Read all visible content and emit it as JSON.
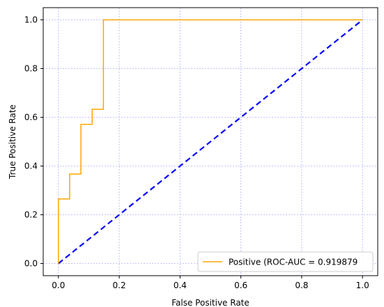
{
  "chart_data": {
    "type": "line",
    "xlabel": "False Positive Rate",
    "ylabel": "True Positive Rate",
    "xlim": [
      -0.05,
      1.05
    ],
    "ylim": [
      -0.05,
      1.05
    ],
    "xticks": [
      0.0,
      0.2,
      0.4,
      0.6,
      0.8,
      1.0
    ],
    "yticks": [
      0.0,
      0.2,
      0.4,
      0.6,
      0.8,
      1.0
    ],
    "xtick_labels": [
      "0.0",
      "0.2",
      "0.4",
      "0.6",
      "0.8",
      "1.0"
    ],
    "ytick_labels": [
      "0.0",
      "0.2",
      "0.4",
      "0.6",
      "0.8",
      "1.0"
    ],
    "grid": true,
    "grid_color": "#b0b0ff",
    "legend_position": "lower-right",
    "series": [
      {
        "name": "Positive (ROC-AUC = 0.919879",
        "color": "#ffa500",
        "style": "solid",
        "x": [
          0.0,
          0.0,
          0.037,
          0.037,
          0.074,
          0.074,
          0.111,
          0.111,
          0.148,
          0.148,
          1.0
        ],
        "y": [
          0.0,
          0.265,
          0.265,
          0.367,
          0.367,
          0.571,
          0.571,
          0.633,
          0.633,
          1.0,
          1.0
        ]
      },
      {
        "name": "",
        "color": "#0000ff",
        "style": "dashed",
        "x": [
          0.0,
          1.0
        ],
        "y": [
          0.0,
          1.0
        ]
      }
    ]
  }
}
